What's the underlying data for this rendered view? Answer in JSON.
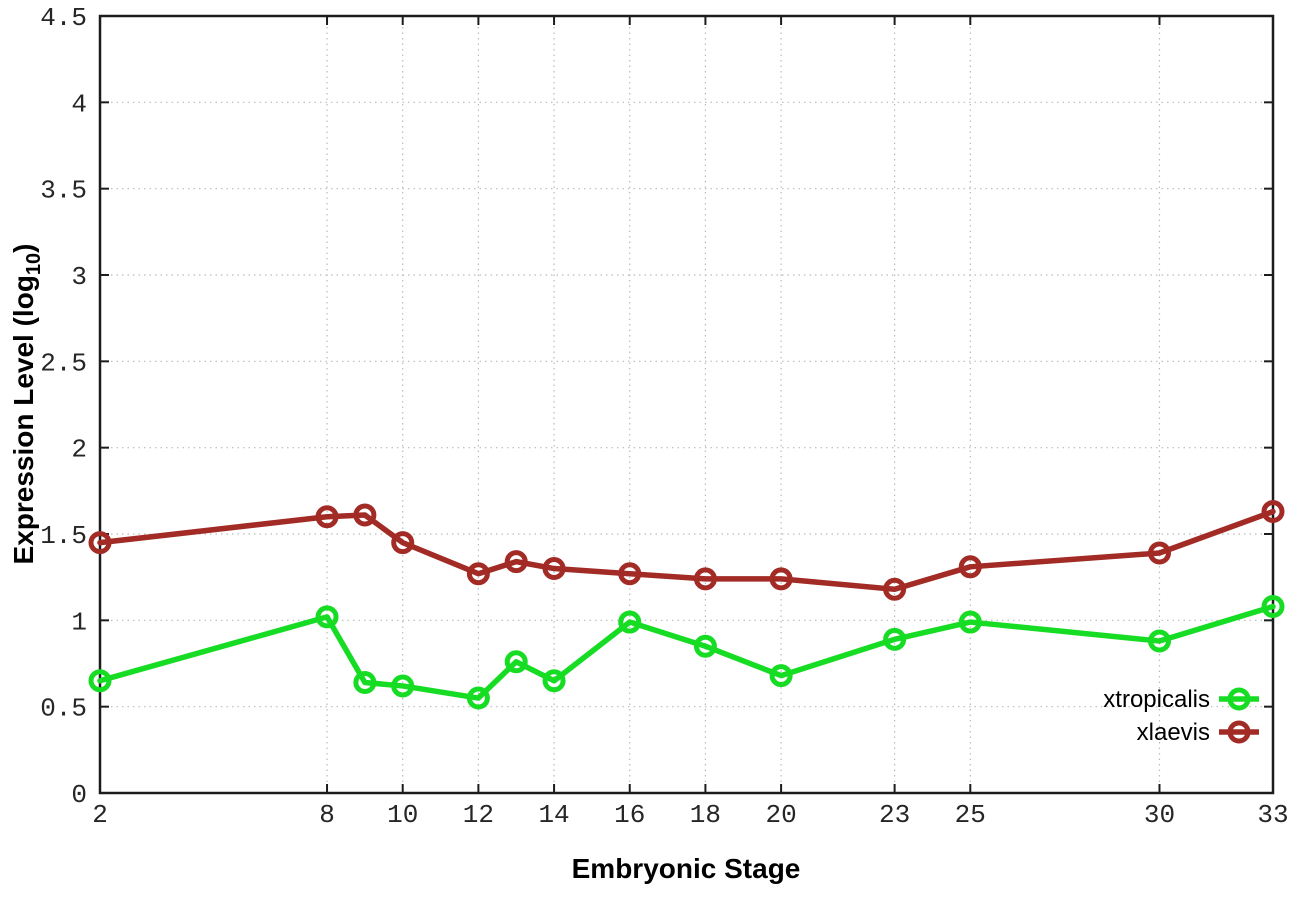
{
  "chart_data": {
    "type": "line",
    "title": "",
    "xlabel": "Embryonic Stage",
    "ylabel": {
      "text": "Expression Level (log",
      "sub": "10",
      "suffix": ")"
    },
    "x": [
      2,
      8,
      9,
      10,
      12,
      13,
      14,
      16,
      18,
      20,
      23,
      25,
      30,
      33
    ],
    "series": [
      {
        "name": "xtropicalis",
        "color": "#16dc24",
        "values": [
          0.65,
          1.02,
          0.64,
          0.62,
          0.55,
          0.76,
          0.65,
          0.99,
          0.85,
          0.68,
          0.89,
          0.99,
          0.88,
          1.08
        ]
      },
      {
        "name": "xlaevis",
        "color": "#a32b26",
        "values": [
          1.45,
          1.6,
          1.61,
          1.45,
          1.27,
          1.34,
          1.3,
          1.27,
          1.24,
          1.24,
          1.18,
          1.31,
          1.39,
          1.63
        ]
      }
    ],
    "xlim": [
      2,
      33
    ],
    "ylim": [
      0,
      4.5
    ],
    "xticks": [
      2,
      8,
      10,
      12,
      14,
      16,
      18,
      20,
      23,
      25,
      30,
      33
    ],
    "xtick_labels": [
      "2",
      "8",
      "10",
      "12",
      "14",
      "16",
      "18",
      "20",
      "23",
      "25",
      "30",
      "33"
    ],
    "yticks": [
      0,
      0.5,
      1,
      1.5,
      2,
      2.5,
      3,
      3.5,
      4,
      4.5
    ],
    "ytick_labels": [
      "0",
      "0.5",
      "1",
      "1.5",
      "2",
      "2.5",
      "3",
      "3.5",
      "4",
      "4.5"
    ],
    "grid": true,
    "legend_position": "inside-bottom-right",
    "legend": [
      "xtropicalis",
      "xlaevis"
    ],
    "marker": "open-circle",
    "colors": {
      "border": "#1c1c1c",
      "grid": "#bbbbbb",
      "tick_text": "#262626",
      "background": "#ffffff"
    }
  }
}
